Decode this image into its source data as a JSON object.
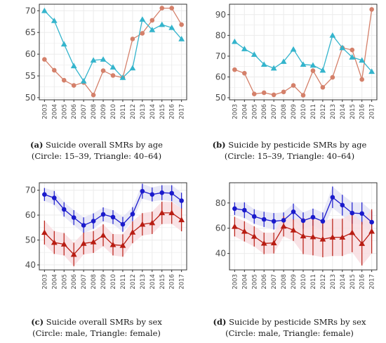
{
  "colors": {
    "circle_age": "#d4806a",
    "triangle_age": "#34b4cc",
    "male": "#1a1acc",
    "female": "#b81c12",
    "male_band": "#e4e4f6",
    "female_band": "#f8dde0",
    "grid": "#ebebeb",
    "panel_border": "#333333"
  },
  "panels": [
    {
      "caption": {
        "tag": "(a)",
        "line1": "Suicide overall SMRs by age",
        "line2": "(Circle: 15–39, Triangle: 40–64)"
      }
    },
    {
      "caption": {
        "tag": "(b)",
        "line1": "Suicide by pesticide SMRs by age",
        "line2": "(Circle: 15–39, Triangle: 40–64)"
      }
    },
    {
      "caption": {
        "tag": "(c)",
        "line1": "Suicide overall SMRs by sex",
        "line2": "(Circle: male, Triangle: female)"
      }
    },
    {
      "caption": {
        "tag": "(d)",
        "line1": "Suicide by pesticide SMRs by sex",
        "line2": "(Circle: male, Triangle: female)"
      }
    }
  ],
  "chart_data": [
    {
      "type": "line",
      "categories": [
        "2003",
        "2004",
        "2005",
        "2006",
        "2007",
        "2008",
        "2009",
        "2010",
        "2011",
        "2012",
        "2013",
        "2014",
        "2015",
        "2016",
        "2017"
      ],
      "ylim": [
        49.5,
        71.5
      ],
      "yticks": [
        50,
        55,
        60,
        65,
        70
      ],
      "grid": true,
      "series": [
        {
          "name": "Circle: 15–39",
          "marker": "circle",
          "color": "#d4806a",
          "values": [
            58.8,
            56.3,
            54.0,
            52.8,
            53.5,
            50.6,
            56.2,
            55.1,
            54.6,
            63.5,
            64.8,
            67.8,
            70.6,
            70.6,
            66.8
          ]
        },
        {
          "name": "Triangle: 40–64",
          "marker": "triangle",
          "color": "#34b4cc",
          "values": [
            70.0,
            67.7,
            62.3,
            57.3,
            53.8,
            58.6,
            58.8,
            57.0,
            54.6,
            56.8,
            68.0,
            65.6,
            66.8,
            66.1,
            63.5
          ]
        }
      ]
    },
    {
      "type": "line",
      "categories": [
        "2003",
        "2004",
        "2005",
        "2006",
        "2007",
        "2008",
        "2009",
        "2010",
        "2011",
        "2012",
        "2013",
        "2014",
        "2015",
        "2016",
        "2017"
      ],
      "ylim": [
        49,
        95
      ],
      "yticks": [
        50,
        60,
        70,
        80,
        90
      ],
      "grid": true,
      "series": [
        {
          "name": "Circle: 15–39",
          "marker": "circle",
          "color": "#d4806a",
          "values": [
            63.5,
            61.8,
            51.8,
            52.4,
            51.4,
            52.8,
            55.9,
            51.2,
            63.0,
            55.0,
            59.8,
            74.0,
            73.0,
            58.8,
            92.5
          ]
        },
        {
          "name": "Triangle: 40–64",
          "marker": "triangle",
          "color": "#34b4cc",
          "values": [
            77.0,
            73.5,
            70.8,
            66.0,
            64.2,
            67.4,
            73.3,
            66.0,
            65.6,
            63.2,
            80.0,
            74.0,
            69.5,
            68.0,
            62.6
          ]
        }
      ]
    },
    {
      "type": "line",
      "categories": [
        "2003",
        "2004",
        "2005",
        "2006",
        "2007",
        "2008",
        "2009",
        "2010",
        "2011",
        "2012",
        "2013",
        "2014",
        "2015",
        "2016",
        "2017"
      ],
      "ylim": [
        38,
        73
      ],
      "yticks": [
        40,
        50,
        60,
        70
      ],
      "grid": true,
      "error_bars": true,
      "series": [
        {
          "name": "Circle: male",
          "marker": "circle",
          "color": "#1a1acc",
          "band": "#e4e4f6",
          "values": [
            68.3,
            66.9,
            62.3,
            59.0,
            55.9,
            57.6,
            60.3,
            59.2,
            56.3,
            60.4,
            69.6,
            68.3,
            69.0,
            68.8,
            65.8
          ],
          "lower": [
            65.7,
            64.1,
            59.4,
            56.0,
            52.7,
            54.5,
            57.5,
            56.4,
            53.3,
            57.6,
            66.6,
            65.5,
            66.0,
            65.6,
            62.6
          ],
          "upper": [
            70.9,
            69.7,
            65.2,
            62.0,
            59.1,
            60.7,
            63.1,
            62.0,
            59.3,
            63.2,
            72.6,
            71.1,
            72.0,
            72.0,
            69.0
          ]
        },
        {
          "name": "Triangle: female",
          "marker": "triangle",
          "color": "#b81c12",
          "band": "#f8dde0",
          "values": [
            53.0,
            49.0,
            48.3,
            44.2,
            48.6,
            49.2,
            51.9,
            48.1,
            47.8,
            53.1,
            56.3,
            56.9,
            60.9,
            60.9,
            58.1
          ],
          "lower": [
            48.2,
            44.4,
            43.8,
            39.5,
            44.2,
            44.8,
            47.5,
            43.8,
            43.3,
            48.7,
            51.8,
            52.4,
            56.4,
            56.5,
            53.5
          ],
          "upper": [
            57.8,
            53.6,
            52.8,
            48.9,
            53.0,
            53.6,
            56.3,
            52.4,
            52.3,
            57.5,
            60.8,
            61.4,
            65.4,
            65.3,
            62.7
          ]
        }
      ]
    },
    {
      "type": "line",
      "categories": [
        "2003",
        "2004",
        "2005",
        "2006",
        "2007",
        "2008",
        "2009",
        "2010",
        "2011",
        "2012",
        "2013",
        "2014",
        "2015",
        "2016",
        "2017"
      ],
      "ylim": [
        27,
        96
      ],
      "yticks": [
        40,
        60,
        80
      ],
      "grid": true,
      "error_bars": true,
      "series": [
        {
          "name": "Circle: male",
          "marker": "circle",
          "color": "#1a1acc",
          "band": "#e4e4f6",
          "values": [
            75.5,
            74.3,
            69.3,
            67.0,
            65.5,
            66.3,
            73.0,
            66.0,
            68.7,
            65.5,
            84.5,
            78.3,
            72.0,
            71.6,
            64.8
          ],
          "lower": [
            70.5,
            68.0,
            63.5,
            61.0,
            59.0,
            60.0,
            66.5,
            59.5,
            62.0,
            58.5,
            76.0,
            70.0,
            63.5,
            63.0,
            56.0
          ],
          "upper": [
            80.5,
            80.5,
            75.0,
            73.0,
            72.0,
            72.5,
            79.5,
            72.5,
            75.5,
            72.5,
            93.0,
            86.5,
            80.5,
            80.5,
            73.5
          ]
        },
        {
          "name": "Triangle: female",
          "marker": "triangle",
          "color": "#b81c12",
          "band": "#f8dde0",
          "values": [
            61.3,
            57.5,
            53.5,
            48.0,
            48.3,
            61.5,
            58.5,
            53.8,
            53.1,
            51.3,
            52.8,
            52.8,
            56.5,
            47.8,
            57.5
          ],
          "lower": [
            53.5,
            49.5,
            45.5,
            39.5,
            40.0,
            53.5,
            50.0,
            39.5,
            38.5,
            37.0,
            38.0,
            38.0,
            41.0,
            30.5,
            40.0
          ],
          "upper": [
            69.0,
            65.5,
            61.5,
            56.5,
            56.5,
            69.5,
            67.0,
            68.0,
            67.5,
            65.5,
            67.5,
            67.5,
            72.0,
            65.0,
            75.0
          ]
        }
      ]
    }
  ]
}
